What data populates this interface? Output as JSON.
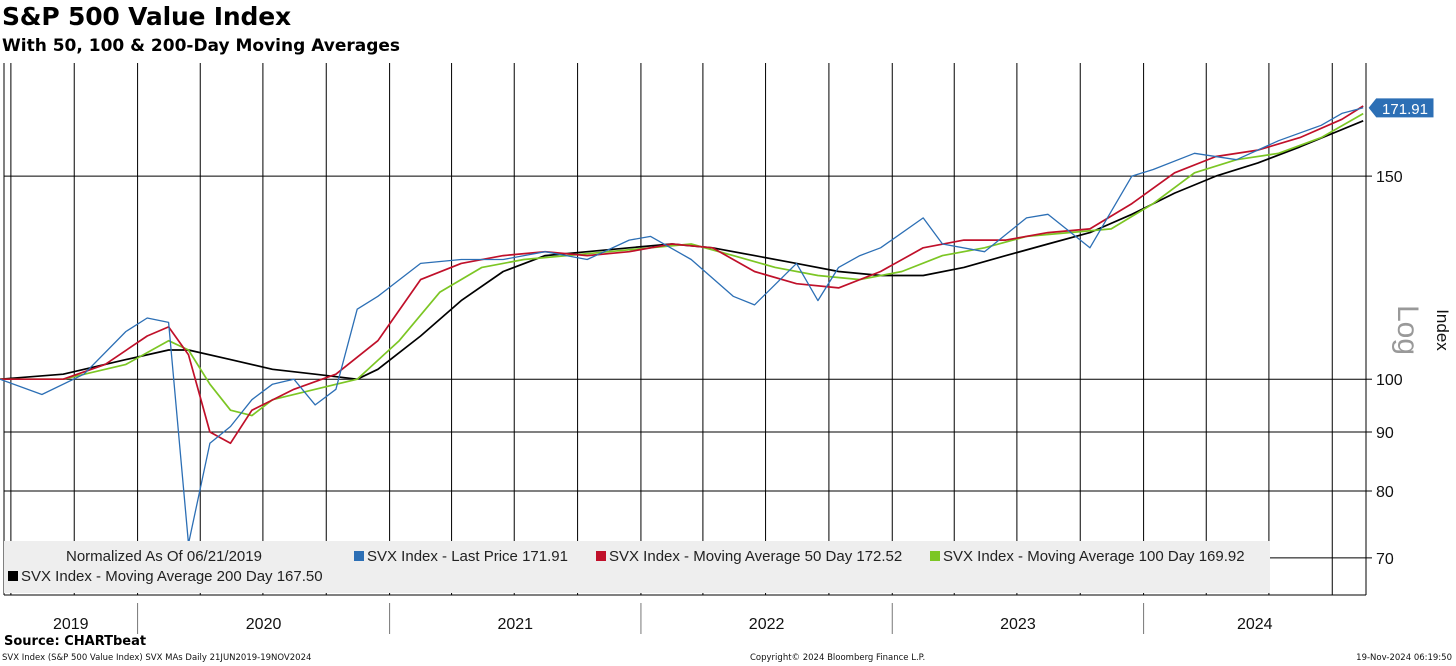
{
  "header": {
    "title": "S&P 500 Value Index",
    "subtitle": "With 50, 100 & 200-Day Moving Averages"
  },
  "legend": {
    "normalized": "Normalized As Of 06/21/2019",
    "items": [
      {
        "text": "SVX Index - Last Price 171.91",
        "color": "#2c6fb5"
      },
      {
        "text": "SVX Index - Moving Average 50 Day 172.52",
        "color": "#c0102a"
      },
      {
        "text": "SVX Index - Moving Average 100 Day 169.92",
        "color": "#7cc624"
      },
      {
        "text": "SVX Index - Moving Average 200 Day 167.50",
        "color": "#000000"
      }
    ]
  },
  "footer": {
    "source": "Source: CHARTbeat",
    "left": "SVX Index (S&P 500 Value Index) SVX MAs  Daily 21JUN2019-19NOV2024",
    "middle": "Copyright© 2024 Bloomberg Finance L.P.",
    "right": "19-Nov-2024 06:19:50"
  },
  "chart_data": {
    "type": "line",
    "scale": "log",
    "y_axis_side": "right",
    "y_axis_title": "Index",
    "log_watermark": "Log",
    "x_ticks": [
      "2019",
      "2020",
      "2021",
      "2022",
      "2023",
      "2024"
    ],
    "y_ticks": [
      70,
      80,
      90,
      100,
      150
    ],
    "ylim": [
      65,
      188
    ],
    "xlim": [
      "2019-06-21",
      "2024-11-19"
    ],
    "grid": true,
    "last_value_label": "171.91",
    "series": [
      {
        "name": "SVX Index - Last Price",
        "color": "#2c6fb5",
        "x": [
          "2019-06",
          "2019-08",
          "2019-10",
          "2019-12",
          "2020-01",
          "2020-02",
          "2020-03",
          "2020-04",
          "2020-05",
          "2020-06",
          "2020-07",
          "2020-08",
          "2020-09",
          "2020-10",
          "2020-11",
          "2020-12",
          "2021-02",
          "2021-04",
          "2021-06",
          "2021-08",
          "2021-10",
          "2021-12",
          "2022-01",
          "2022-03",
          "2022-05",
          "2022-06",
          "2022-08",
          "2022-09",
          "2022-10",
          "2022-11",
          "2022-12",
          "2023-02",
          "2023-03",
          "2023-05",
          "2023-07",
          "2023-08",
          "2023-10",
          "2023-12",
          "2024-01",
          "2024-03",
          "2024-05",
          "2024-07",
          "2024-09",
          "2024-10",
          "2024-11"
        ],
        "values": [
          100,
          97,
          101,
          110,
          113,
          112,
          72,
          88,
          91,
          96,
          99,
          100,
          95,
          98,
          115,
          118,
          126,
          127,
          127,
          129,
          127,
          132,
          133,
          127,
          118,
          116,
          126,
          117,
          125,
          128,
          130,
          138,
          131,
          129,
          138,
          139,
          130,
          150,
          152,
          157,
          155,
          161,
          166,
          170,
          171.91
        ]
      },
      {
        "name": "SVX Index - Moving Average 50 Day",
        "color": "#c0102a",
        "x": [
          "2019-06",
          "2019-09",
          "2019-11",
          "2020-01",
          "2020-02",
          "2020-03",
          "2020-04",
          "2020-05",
          "2020-06",
          "2020-08",
          "2020-10",
          "2020-12",
          "2021-02",
          "2021-04",
          "2021-06",
          "2021-08",
          "2021-10",
          "2021-12",
          "2022-02",
          "2022-04",
          "2022-06",
          "2022-08",
          "2022-10",
          "2022-12",
          "2023-02",
          "2023-04",
          "2023-06",
          "2023-08",
          "2023-10",
          "2023-12",
          "2024-02",
          "2024-04",
          "2024-06",
          "2024-08",
          "2024-10",
          "2024-11"
        ],
        "values": [
          100,
          100,
          103,
          109,
          111,
          105,
          90,
          88,
          94,
          98,
          101,
          108,
          122,
          126,
          128,
          129,
          128,
          129,
          131,
          130,
          124,
          121,
          120,
          124,
          130,
          132,
          132,
          134,
          135,
          142,
          151,
          156,
          158,
          162,
          168,
          172.52
        ]
      },
      {
        "name": "SVX Index - Moving Average 100 Day",
        "color": "#7cc624",
        "x": [
          "2019-06",
          "2019-09",
          "2019-12",
          "2020-02",
          "2020-03",
          "2020-04",
          "2020-05",
          "2020-06",
          "2020-07",
          "2020-09",
          "2020-11",
          "2021-01",
          "2021-03",
          "2021-05",
          "2021-07",
          "2021-09",
          "2021-11",
          "2022-01",
          "2022-03",
          "2022-05",
          "2022-07",
          "2022-09",
          "2022-11",
          "2023-01",
          "2023-03",
          "2023-05",
          "2023-07",
          "2023-09",
          "2023-11",
          "2024-01",
          "2024-03",
          "2024-05",
          "2024-07",
          "2024-09",
          "2024-11"
        ],
        "values": [
          100,
          100,
          103,
          108,
          106,
          99,
          94,
          93,
          96,
          98,
          100,
          108,
          119,
          125,
          127,
          128,
          129,
          130,
          131,
          128,
          125,
          123,
          122,
          124,
          128,
          130,
          133,
          134,
          135,
          142,
          151,
          155,
          157,
          162,
          169.92
        ]
      },
      {
        "name": "SVX Index - Moving Average 200 Day",
        "color": "#000000",
        "x": [
          "2019-06",
          "2019-09",
          "2019-12",
          "2020-02",
          "2020-03",
          "2020-05",
          "2020-07",
          "2020-09",
          "2020-11",
          "2020-12",
          "2021-02",
          "2021-04",
          "2021-06",
          "2021-08",
          "2021-10",
          "2021-12",
          "2022-02",
          "2022-04",
          "2022-06",
          "2022-08",
          "2022-10",
          "2022-12",
          "2023-02",
          "2023-04",
          "2023-06",
          "2023-08",
          "2023-10",
          "2023-12",
          "2024-02",
          "2024-04",
          "2024-06",
          "2024-08",
          "2024-11"
        ],
        "values": [
          100,
          101,
          104,
          106,
          106,
          104,
          102,
          101,
          100,
          102,
          109,
          117,
          124,
          128,
          129,
          130,
          131,
          130,
          128,
          126,
          124,
          123,
          123,
          125,
          128,
          131,
          134,
          139,
          145,
          150,
          154,
          159,
          167.5
        ]
      }
    ]
  }
}
